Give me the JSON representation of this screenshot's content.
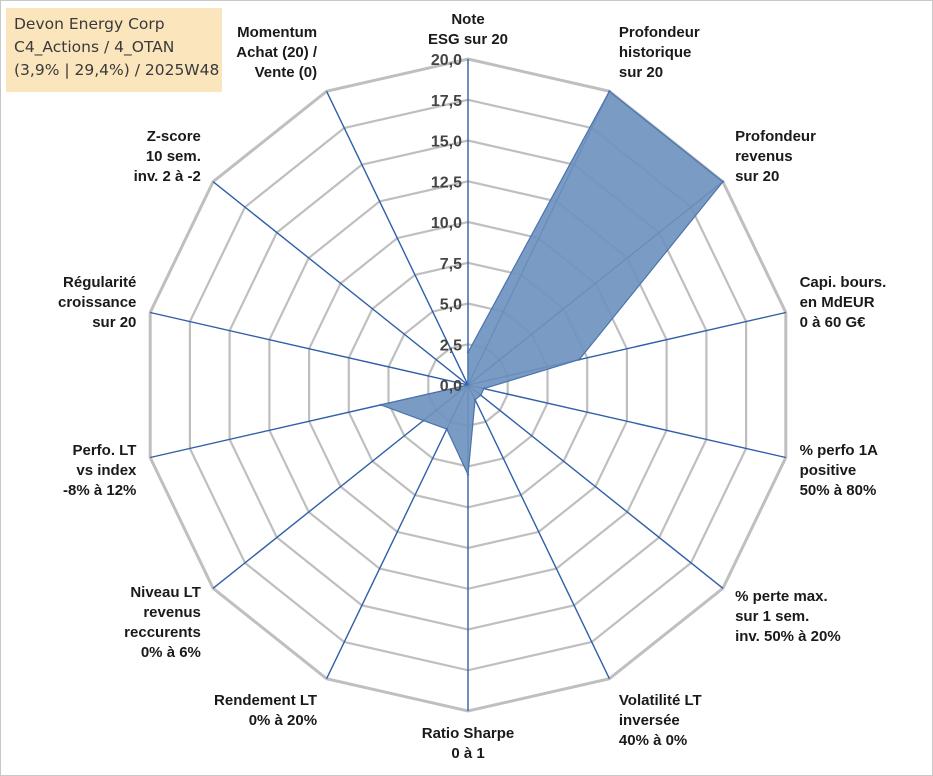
{
  "info_box": {
    "line1": "Devon Energy Corp",
    "line2": "C4_Actions / 4_OTAN",
    "line3": "(3,9% | 29,4%) / 2025W48"
  },
  "colors": {
    "grid": "#bfbfbf",
    "spoke": "#2f5fa8",
    "series_fill": "#6f93be",
    "series_stroke": "#4a74ad",
    "info_box_bg": "#fbe5bd"
  },
  "chart_data": {
    "type": "radar",
    "title": "",
    "rmin": 0,
    "rmax": 20,
    "ticks": [
      "0,0",
      "2,5",
      "5,0",
      "7,5",
      "10,0",
      "12,5",
      "15,0",
      "17,5",
      "20,0"
    ],
    "grid": true,
    "categories": [
      [
        "Note",
        "ESG sur 20"
      ],
      [
        "Profondeur",
        "historique",
        "sur 20"
      ],
      [
        "Profondeur",
        "revenus",
        "sur 20"
      ],
      [
        "Capi. bours.",
        "en MdEUR",
        "0 à 60 G€"
      ],
      [
        "% perfo 1A",
        "positive",
        "50% à 80%"
      ],
      [
        "% perte max.",
        "sur 1 sem.",
        "inv. 50% à 20%"
      ],
      [
        "Volatilité LT",
        "inversée",
        "40% à 0%"
      ],
      [
        "Ratio Sharpe",
        "0 à 1"
      ],
      [
        "Rendement LT",
        "0% à 20%"
      ],
      [
        "Niveau LT",
        "revenus",
        "reccurents",
        "0% à 6%"
      ],
      [
        "Perfo. LT",
        "vs index",
        "-8% à 12%"
      ],
      [
        "Régularité",
        "croissance",
        "sur 20"
      ],
      [
        "Z-score",
        "10 sem.",
        "inv. 2 à -2"
      ],
      [
        "Momentum",
        "Achat (20) /",
        "Vente (0)"
      ]
    ],
    "series": [
      {
        "values": [
          2.0,
          20.0,
          20.0,
          7.0,
          1.0,
          1.0,
          1.0,
          5.5,
          3.0,
          3.5,
          5.5,
          0.0,
          0.0,
          0.0
        ]
      }
    ]
  }
}
